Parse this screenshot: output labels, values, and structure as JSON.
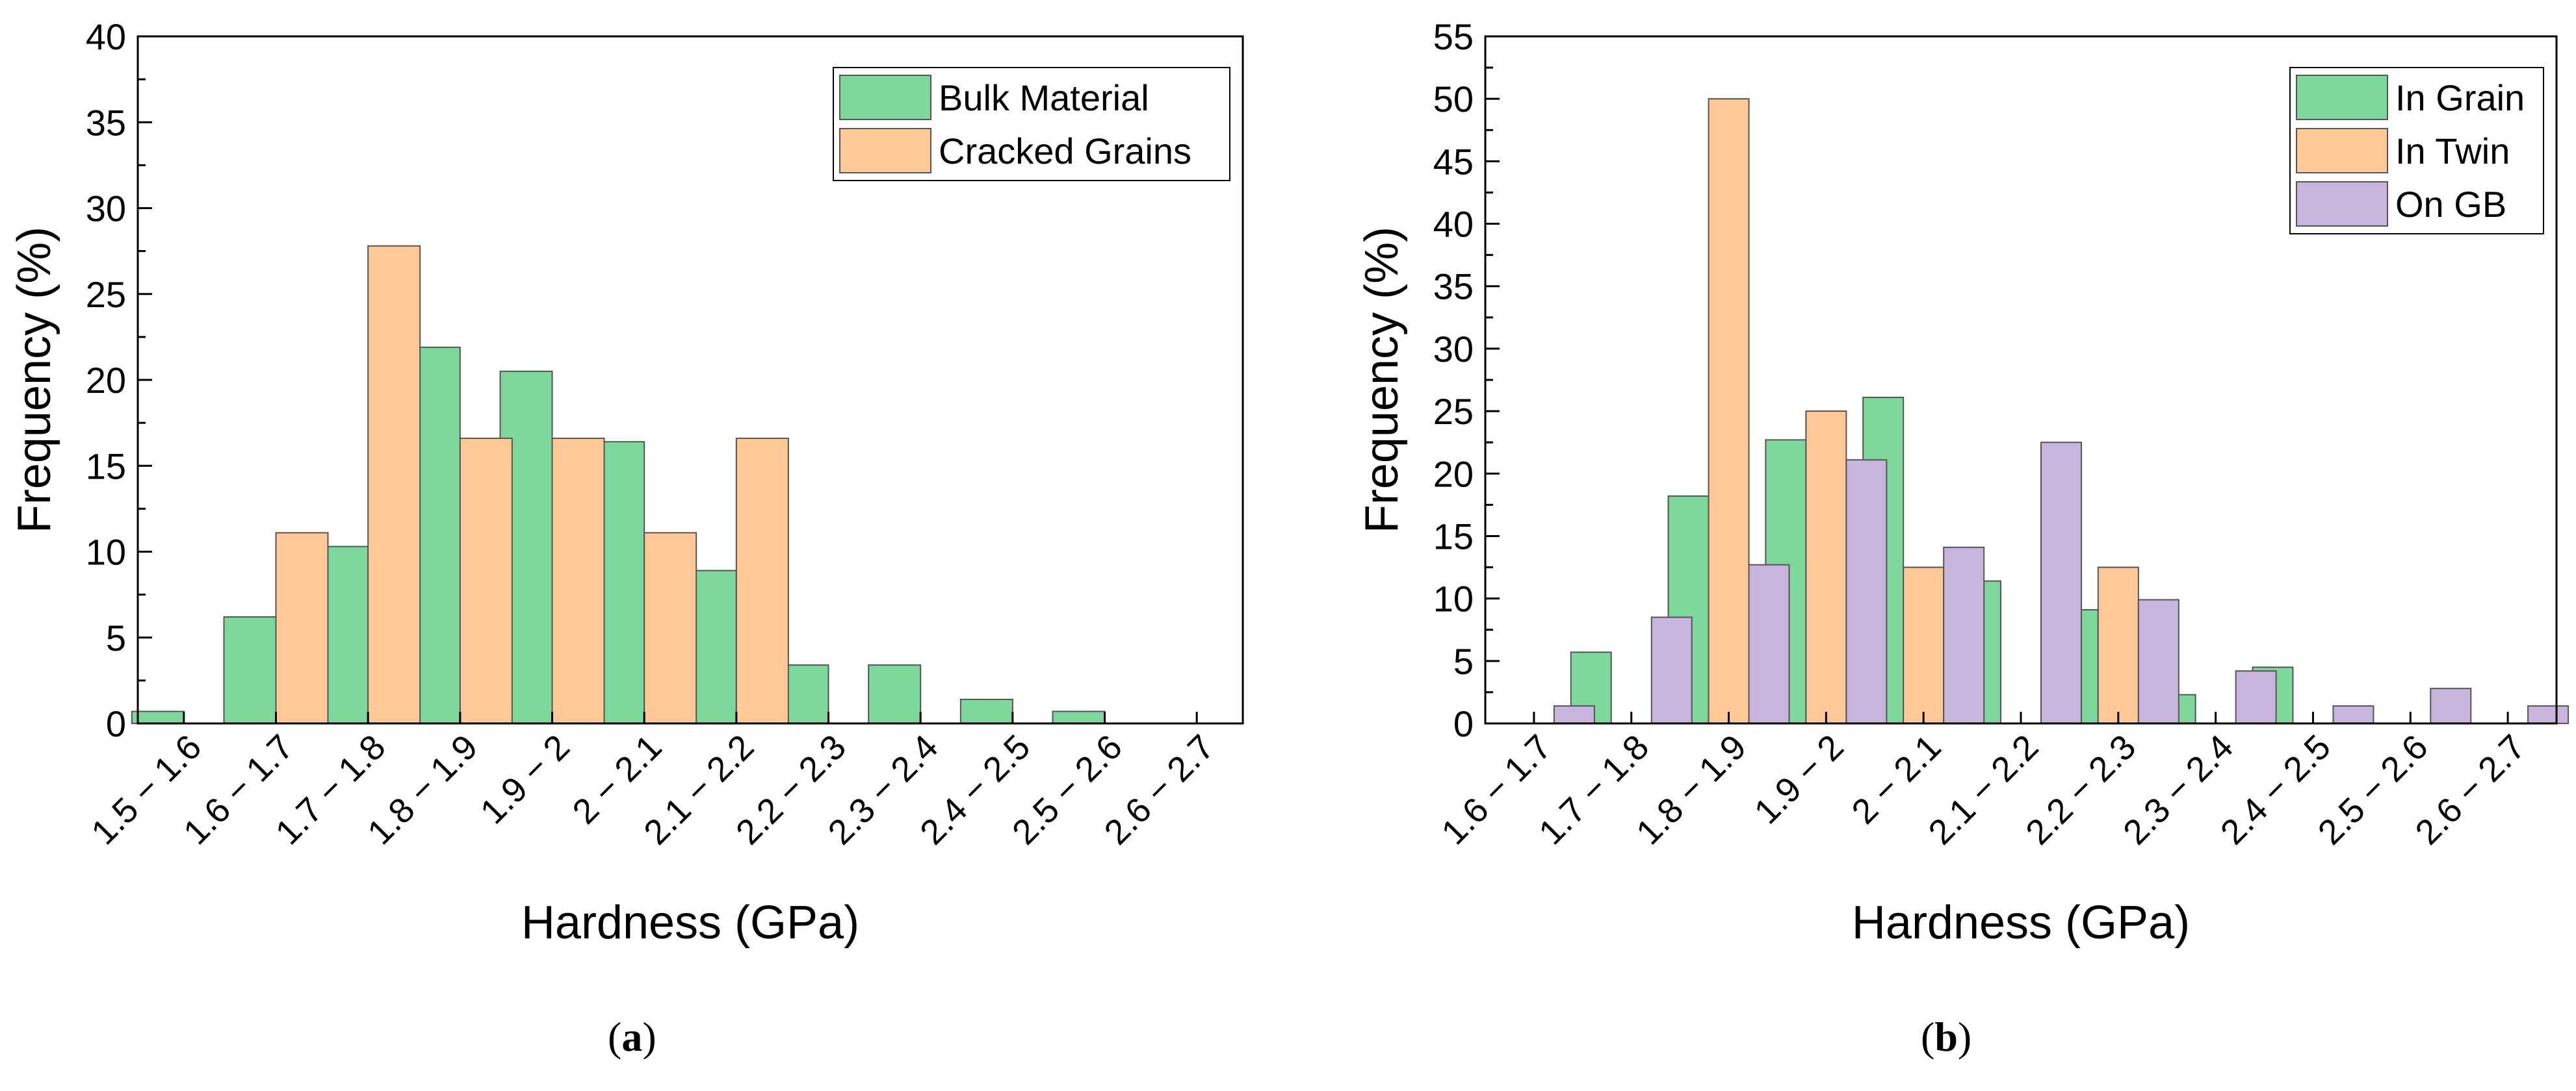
{
  "colors": {
    "green": "#7DD89C",
    "orange": "#FFC896",
    "purple": "#C8B4DC",
    "axis": "#000000"
  },
  "chart_data": [
    {
      "id": "a",
      "type": "bar",
      "sublabel": "a",
      "title": "",
      "xlabel": "Hardness (GPa)",
      "ylabel": "Frequency (%)",
      "ylim": [
        0,
        40
      ],
      "yticks": [
        0,
        5,
        10,
        15,
        20,
        25,
        30,
        35,
        40
      ],
      "grid": false,
      "legend_position": "top-right",
      "categories": [
        "1.5 − 1.6",
        "1.6 − 1.7",
        "1.7 − 1.8",
        "1.8 − 1.9",
        "1.9 − 2",
        "2 − 2.1",
        "2.1 − 2.2",
        "2.2 − 2.3",
        "2.3 − 2.4",
        "2.4 − 2.5",
        "2.5 − 2.6",
        "2.6 − 2.7"
      ],
      "series": [
        {
          "name": "Bulk Material",
          "color_key": "green",
          "values": [
            0.7,
            6.2,
            10.3,
            21.9,
            20.5,
            16.4,
            8.9,
            3.4,
            3.4,
            1.4,
            0.7,
            0
          ]
        },
        {
          "name": "Cracked Grains",
          "color_key": "orange",
          "values": [
            0,
            11.1,
            27.8,
            16.6,
            16.6,
            11.1,
            16.6,
            0,
            0,
            0,
            0,
            0
          ]
        }
      ]
    },
    {
      "id": "b",
      "type": "bar",
      "sublabel": "b",
      "title": "",
      "xlabel": "Hardness (GPa)",
      "ylabel": "Frequency (%)",
      "ylim": [
        0,
        55
      ],
      "yticks": [
        0,
        5,
        10,
        15,
        20,
        25,
        30,
        35,
        40,
        45,
        50,
        55
      ],
      "grid": false,
      "legend_position": "top-right",
      "categories": [
        "1.6 − 1.7",
        "1.7 − 1.8",
        "1.8 − 1.9",
        "1.9 − 2",
        "2 − 2.1",
        "2.1 − 2.2",
        "2.2 − 2.3",
        "2.3 − 2.4",
        "2.4 − 2.5",
        "2.5 − 2.6",
        "2.6 − 2.7"
      ],
      "series": [
        {
          "name": "In Grain",
          "color_key": "green",
          "values": [
            0,
            5.7,
            18.2,
            22.7,
            26.1,
            11.4,
            9.1,
            2.3,
            4.5,
            0,
            0
          ]
        },
        {
          "name": "In Twin",
          "color_key": "orange",
          "values": [
            0,
            0,
            50,
            25,
            12.5,
            0,
            12.5,
            0,
            0,
            0,
            0
          ]
        },
        {
          "name": "On GB",
          "color_key": "purple",
          "values": [
            1.4,
            8.5,
            12.7,
            21.1,
            14.1,
            22.5,
            9.9,
            4.2,
            1.4,
            2.8,
            1.4
          ]
        }
      ]
    }
  ]
}
